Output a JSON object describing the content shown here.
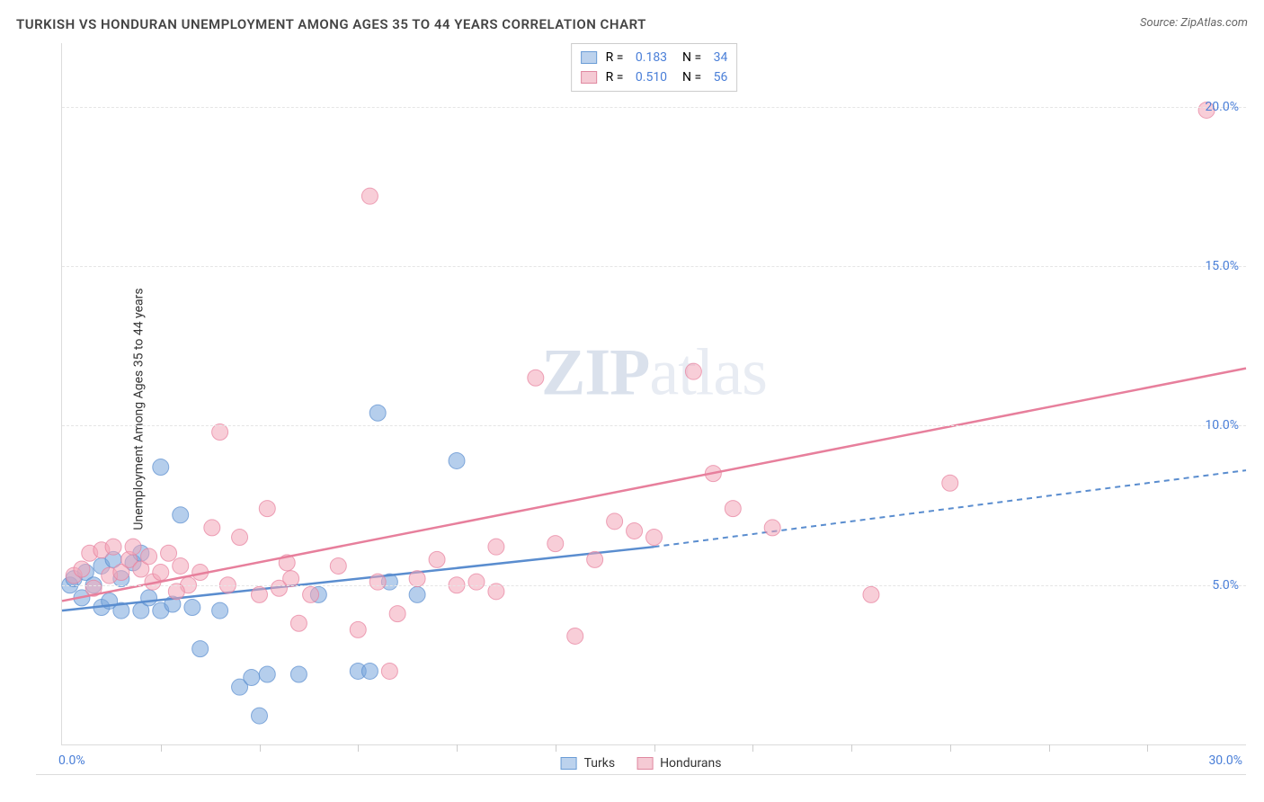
{
  "title": "TURKISH VS HONDURAN UNEMPLOYMENT AMONG AGES 35 TO 44 YEARS CORRELATION CHART",
  "source": "Source: ZipAtlas.com",
  "ylabel": "Unemployment Among Ages 35 to 44 years",
  "watermark_zip": "ZIP",
  "watermark_atlas": "atlas",
  "chart": {
    "type": "scatter",
    "xlim": [
      0,
      30
    ],
    "ylim": [
      0,
      22
    ],
    "x_tick_step": 2.5,
    "x_labels": [
      {
        "v": 0,
        "t": "0.0%"
      },
      {
        "v": 30,
        "t": "30.0%"
      }
    ],
    "y_gridlines": [
      5,
      10,
      15,
      20
    ],
    "y_labels": [
      {
        "v": 5,
        "t": "5.0%"
      },
      {
        "v": 10,
        "t": "10.0%"
      },
      {
        "v": 15,
        "t": "15.0%"
      },
      {
        "v": 20,
        "t": "20.0%"
      }
    ],
    "marker_radius": 9,
    "marker_opacity": 0.55,
    "background_color": "#ffffff",
    "grid_color": "#e5e5e5",
    "series": [
      {
        "name": "Turks",
        "color": "#79a6dc",
        "stroke": "#5a8dcf",
        "R": "0.183",
        "N": "34",
        "trend": {
          "x0": 0,
          "y0": 4.2,
          "x1": 15,
          "y1": 6.2,
          "x_dash_end": 30,
          "y_dash_end": 8.6,
          "stroke_width": 2.5
        },
        "points": [
          [
            0.2,
            5.0
          ],
          [
            0.3,
            5.2
          ],
          [
            0.5,
            4.6
          ],
          [
            0.6,
            5.4
          ],
          [
            0.8,
            5.0
          ],
          [
            1.0,
            5.6
          ],
          [
            1.0,
            4.3
          ],
          [
            1.2,
            4.5
          ],
          [
            1.3,
            5.8
          ],
          [
            1.5,
            5.2
          ],
          [
            1.5,
            4.2
          ],
          [
            1.8,
            5.7
          ],
          [
            2.0,
            4.2
          ],
          [
            2.0,
            6.0
          ],
          [
            2.2,
            4.6
          ],
          [
            2.5,
            4.2
          ],
          [
            2.5,
            8.7
          ],
          [
            2.8,
            4.4
          ],
          [
            3.0,
            7.2
          ],
          [
            3.3,
            4.3
          ],
          [
            3.5,
            3.0
          ],
          [
            4.0,
            4.2
          ],
          [
            4.5,
            1.8
          ],
          [
            4.8,
            2.1
          ],
          [
            5.0,
            0.9
          ],
          [
            5.2,
            2.2
          ],
          [
            6.0,
            2.2
          ],
          [
            6.5,
            4.7
          ],
          [
            7.5,
            2.3
          ],
          [
            7.8,
            2.3
          ],
          [
            8.0,
            10.4
          ],
          [
            9.0,
            4.7
          ],
          [
            10.0,
            8.9
          ],
          [
            8.3,
            5.1
          ]
        ]
      },
      {
        "name": "Hondurans",
        "color": "#f2a6b8",
        "stroke": "#e77f9c",
        "R": "0.510",
        "N": "56",
        "trend": {
          "x0": 0,
          "y0": 4.5,
          "x1": 30,
          "y1": 11.8,
          "stroke_width": 2.5
        },
        "points": [
          [
            0.3,
            5.3
          ],
          [
            0.5,
            5.5
          ],
          [
            0.7,
            6.0
          ],
          [
            0.8,
            4.9
          ],
          [
            1.0,
            6.1
          ],
          [
            1.2,
            5.3
          ],
          [
            1.3,
            6.2
          ],
          [
            1.5,
            5.4
          ],
          [
            1.7,
            5.8
          ],
          [
            1.8,
            6.2
          ],
          [
            2.0,
            5.5
          ],
          [
            2.2,
            5.9
          ],
          [
            2.3,
            5.1
          ],
          [
            2.5,
            5.4
          ],
          [
            2.7,
            6.0
          ],
          [
            3.0,
            5.6
          ],
          [
            3.2,
            5.0
          ],
          [
            3.5,
            5.4
          ],
          [
            3.8,
            6.8
          ],
          [
            4.0,
            9.8
          ],
          [
            4.5,
            6.5
          ],
          [
            5.0,
            4.7
          ],
          [
            5.2,
            7.4
          ],
          [
            5.5,
            4.9
          ],
          [
            5.7,
            5.7
          ],
          [
            6.0,
            3.8
          ],
          [
            6.3,
            4.7
          ],
          [
            7.0,
            5.6
          ],
          [
            7.5,
            3.6
          ],
          [
            7.8,
            17.2
          ],
          [
            8.0,
            5.1
          ],
          [
            8.3,
            2.3
          ],
          [
            8.5,
            4.1
          ],
          [
            9.0,
            5.2
          ],
          [
            9.5,
            5.8
          ],
          [
            10.0,
            5.0
          ],
          [
            10.5,
            5.1
          ],
          [
            11.0,
            6.2
          ],
          [
            11.0,
            4.8
          ],
          [
            12.0,
            11.5
          ],
          [
            12.5,
            6.3
          ],
          [
            13.0,
            3.4
          ],
          [
            13.5,
            5.8
          ],
          [
            14.0,
            7.0
          ],
          [
            14.5,
            6.7
          ],
          [
            15.0,
            6.5
          ],
          [
            16.0,
            11.7
          ],
          [
            16.5,
            8.5
          ],
          [
            17.0,
            7.4
          ],
          [
            18.0,
            6.8
          ],
          [
            20.5,
            4.7
          ],
          [
            22.5,
            8.2
          ],
          [
            29.0,
            19.9
          ],
          [
            5.8,
            5.2
          ],
          [
            4.2,
            5.0
          ],
          [
            2.9,
            4.8
          ]
        ]
      }
    ]
  },
  "legend_bottom": [
    {
      "swatch": "blue",
      "label": "Turks"
    },
    {
      "swatch": "pink",
      "label": "Hondurans"
    }
  ]
}
